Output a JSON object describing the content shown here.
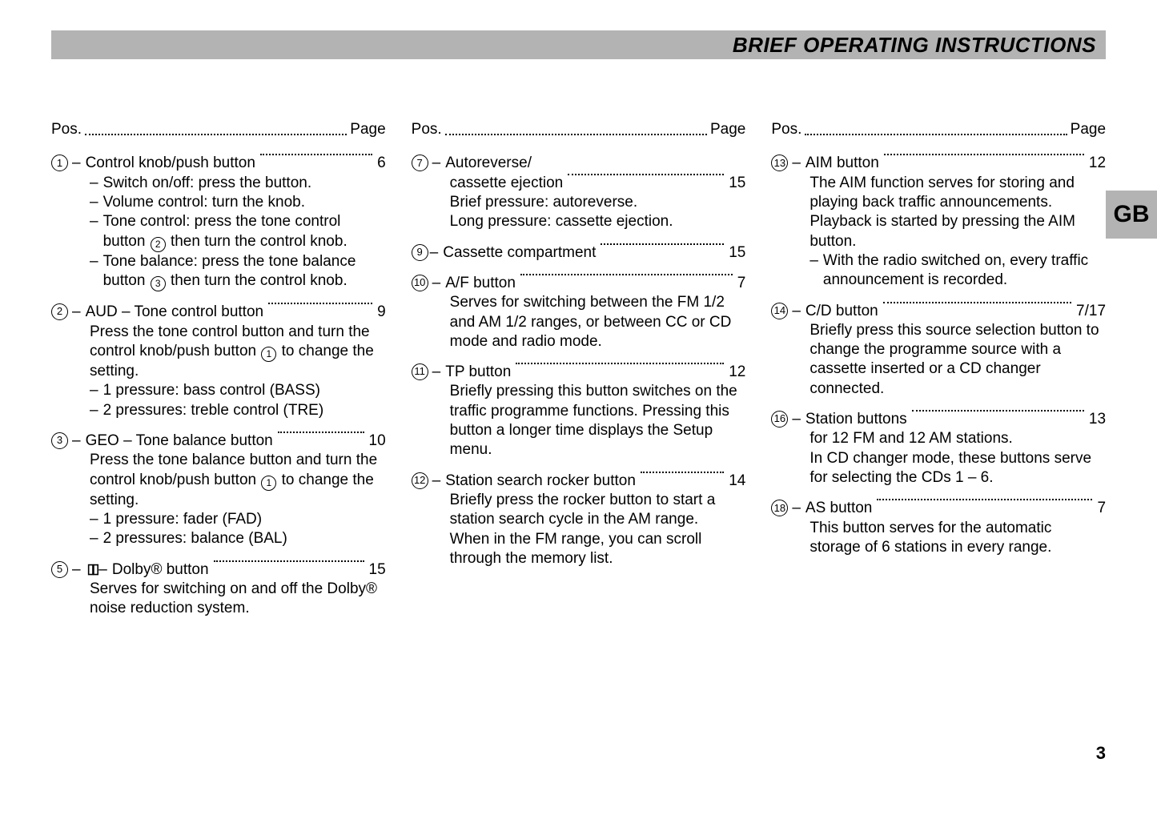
{
  "header": {
    "title": "BRIEF OPERATING INSTRUCTIONS"
  },
  "sidebar": {
    "language_tab": "GB"
  },
  "footer": {
    "page_number": "3"
  },
  "col_header": {
    "pos": "Pos.",
    "page": "Page"
  },
  "columns": [
    {
      "entries": [
        {
          "num": "1",
          "title": "Control knob/push button",
          "page": "6",
          "subs": [
            "Switch on/off: press the button.",
            "Volume control: turn the knob.",
            "Tone control: press the tone control button ② then turn the control knob.",
            "Tone balance: press the tone balance button ③ then turn the control knob."
          ]
        },
        {
          "num": "2",
          "title": "AUD – Tone control button",
          "page": "9",
          "desc": "Press the tone control button and turn the control knob/push button ① to change the setting.",
          "subs": [
            "1 pressure: bass control (BASS)",
            "2 pressures: treble control (TRE)"
          ]
        },
        {
          "num": "3",
          "title": "GEO – Tone balance button",
          "page": "10",
          "desc": "Press the tone balance button and turn the control knob/push button ① to change the setting.",
          "subs": [
            "1 pressure: fader (FAD)",
            "2 pressures: balance (BAL)"
          ]
        },
        {
          "num": "5",
          "title_prefix_symbol": "dolby",
          "title": "Dolby® button",
          "page": "15",
          "desc": "Serves for switching on and off the Dolby® noise reduction system."
        }
      ]
    },
    {
      "entries": [
        {
          "num": "7",
          "title": "Autoreverse/",
          "no_page_on_first_line": true,
          "second_line_title": "cassette ejection",
          "page": "15",
          "desc": "Brief pressure: autoreverse.\nLong pressure: cassette ejection."
        },
        {
          "num": "9",
          "title": "Cassette compartment",
          "page": "15",
          "tight_sep": true
        },
        {
          "num": "10",
          "title": "A/F button",
          "page": "7",
          "desc": "Serves for switching between the FM 1/2 and AM 1/2 ranges, or between CC or CD mode and radio mode."
        },
        {
          "num": "11",
          "title": "TP button",
          "page": "12",
          "desc": "Briefly pressing this button switches on the traffic programme functions. Pressing this button a longer time displays the Setup menu."
        },
        {
          "num": "12",
          "title": "Station search rocker button",
          "page": "14",
          "desc": "Briefly press the rocker button to start a station search cycle in the AM range.\nWhen in the FM range, you can scroll through the memory list."
        }
      ]
    },
    {
      "entries": [
        {
          "num": "13",
          "title": "AIM button",
          "page": "12",
          "desc": "The AIM function serves for storing and playing back traffic announcements. Playback is started by pressing the AIM button.",
          "subs": [
            "With the radio switched on, every traffic announcement is recorded."
          ]
        },
        {
          "num": "14",
          "title": "C/D button",
          "page": "7/17",
          "desc": "Briefly press this source selection button to change the programme source with a cassette inserted or a CD changer connected."
        },
        {
          "num": "16",
          "title": "Station buttons",
          "page": "13",
          "desc": "for 12 FM and 12 AM stations.\nIn CD changer mode, these buttons serve for selecting the CDs 1 – 6."
        },
        {
          "num": "18",
          "title": "AS button",
          "page": "7",
          "desc": "This button serves for the automatic storage of 6 stations in every range."
        }
      ]
    }
  ]
}
